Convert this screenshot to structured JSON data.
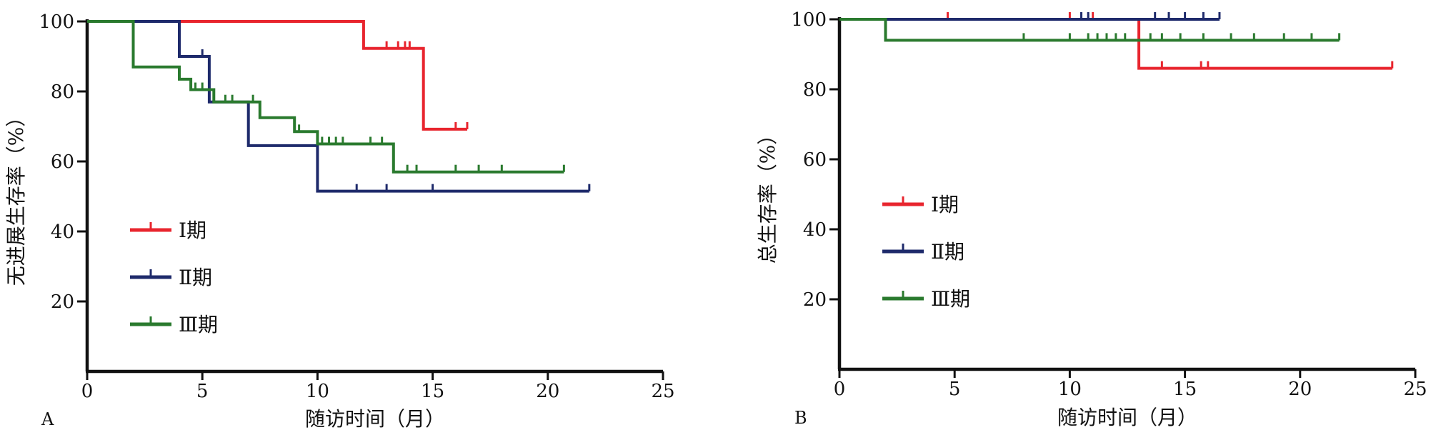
{
  "chart_data": [
    {
      "type": "line",
      "panel_label": "A",
      "title": "",
      "xlabel": "随访时间（月）",
      "ylabel": "无进展生存率（%）",
      "xlim": [
        0,
        25
      ],
      "ylim": [
        0,
        100
      ],
      "xticks": [
        0,
        5,
        10,
        15,
        20,
        25
      ],
      "yticks": [
        20,
        40,
        60,
        80,
        100
      ],
      "grid": false,
      "legend_position": "left-middle",
      "series": [
        {
          "name": "Ⅰ期",
          "color": "#e8252e",
          "step_x": [
            0,
            12,
            12,
            14.6,
            14.6,
            16.5
          ],
          "step_y": [
            100,
            100,
            92.3,
            92.3,
            69.2,
            69.2
          ],
          "censor_x": [
            13,
            13.5,
            13.8,
            14,
            16,
            16.5
          ]
        },
        {
          "name": "Ⅱ期",
          "color": "#1e2a6b",
          "step_x": [
            0,
            4,
            4,
            5.3,
            5.3,
            7,
            7,
            10,
            10,
            21.8
          ],
          "step_y": [
            100,
            100,
            90,
            90,
            77,
            77,
            64.5,
            64.5,
            51.5,
            51.5
          ],
          "censor_x": [
            5,
            11.7,
            13,
            15,
            21.8
          ]
        },
        {
          "name": "Ⅲ期",
          "color": "#2a7a2e",
          "step_x": [
            0,
            2,
            2,
            4,
            4,
            4.5,
            4.5,
            5.5,
            5.5,
            7.5,
            7.5,
            9,
            9,
            10,
            10,
            13.3,
            13.3,
            20.7
          ],
          "step_y": [
            100,
            100,
            87,
            87,
            83.5,
            83.5,
            80.5,
            80.5,
            77,
            77,
            72.5,
            72.5,
            68.5,
            68.5,
            65,
            65,
            57,
            57
          ],
          "censor_x": [
            4.7,
            5,
            6,
            6.3,
            7.2,
            9.2,
            10.2,
            10.5,
            10.8,
            11.1,
            12.3,
            12.8,
            13.9,
            14.3,
            16,
            17,
            18,
            20.7
          ]
        }
      ]
    },
    {
      "type": "line",
      "panel_label": "B",
      "title": "",
      "xlabel": "随访时间（月）",
      "ylabel": "总生存率（%）",
      "xlim": [
        0,
        25
      ],
      "ylim": [
        0,
        100
      ],
      "xticks": [
        0,
        5,
        10,
        15,
        20,
        25
      ],
      "yticks": [
        20,
        40,
        60,
        80,
        100
      ],
      "grid": false,
      "legend_position": "left-middle",
      "series": [
        {
          "name": "Ⅰ期",
          "color": "#e8252e",
          "step_x": [
            0,
            13,
            13,
            24
          ],
          "step_y": [
            100,
            100,
            86,
            86
          ],
          "censor_x": [
            4.7,
            10,
            11,
            14,
            15.7,
            16,
            24
          ]
        },
        {
          "name": "Ⅱ期",
          "color": "#1e2a6b",
          "step_x": [
            0,
            16.5
          ],
          "step_y": [
            100,
            100
          ],
          "censor_x": [
            10.5,
            10.8,
            13.7,
            14.3,
            15,
            15.8,
            16.5
          ]
        },
        {
          "name": "Ⅲ期",
          "color": "#2a7a2e",
          "step_x": [
            0,
            2,
            2,
            21.7
          ],
          "step_y": [
            100,
            100,
            94,
            94
          ],
          "censor_x": [
            8,
            10,
            10.8,
            11.2,
            11.6,
            12,
            12.4,
            13.5,
            14,
            14.8,
            15.8,
            17,
            18,
            19.3,
            20.5,
            21.7
          ]
        }
      ]
    }
  ]
}
